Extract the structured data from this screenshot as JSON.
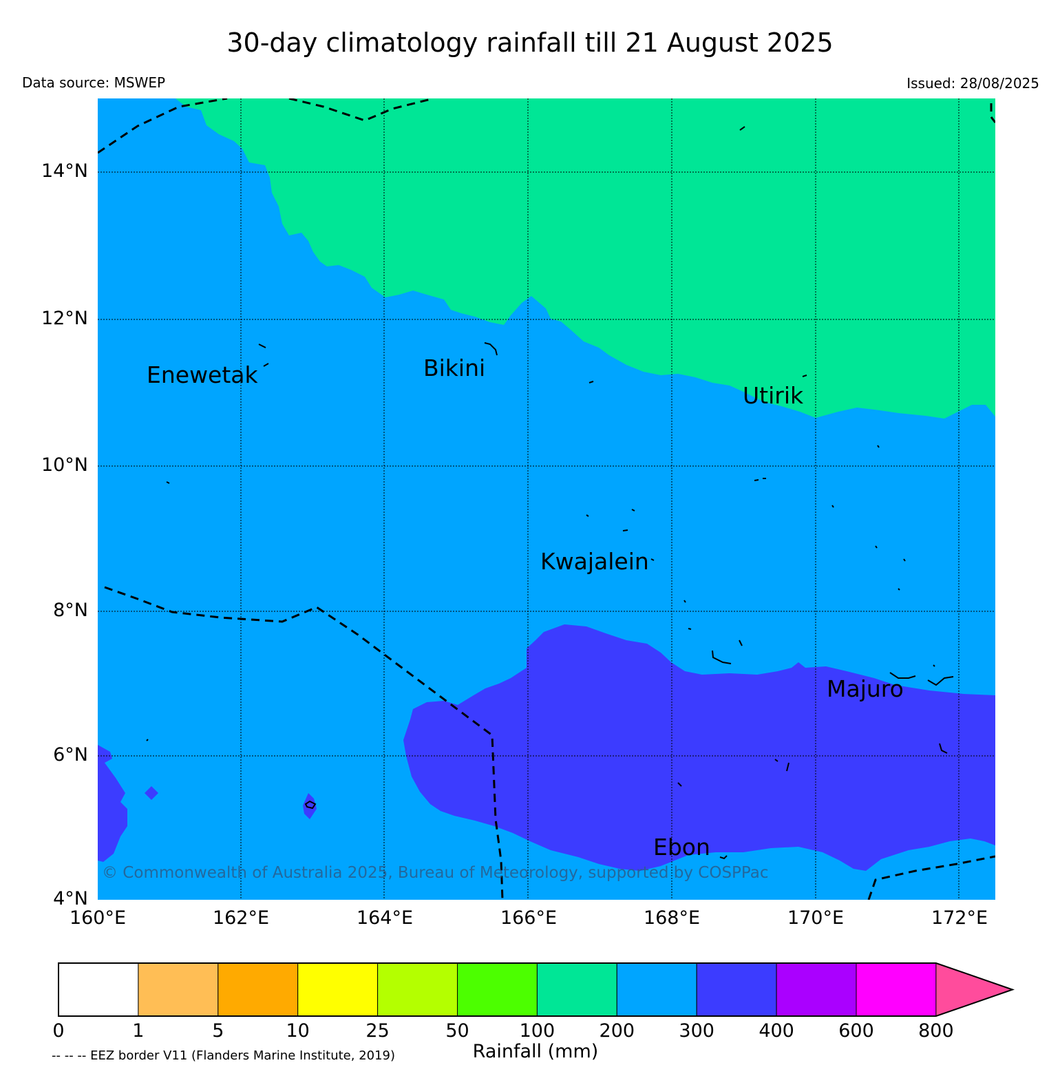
{
  "title": "30-day climatology rainfall till 21 August 2025",
  "data_source": "Data source: MSWEP",
  "issued": "Issued: 28/08/2025",
  "lat_labels": [
    "14°N",
    "12°N",
    "10°N",
    "8°N",
    "6°N",
    "4°N"
  ],
  "lon_labels": [
    "160°E",
    "162°E",
    "164°E",
    "166°E",
    "168°E",
    "170°E",
    "172°E"
  ],
  "places": {
    "enewetak": "Enewetak",
    "bikini": "Bikini",
    "utirik": "Utirik",
    "kwajalein": "Kwajalein",
    "majuro": "Majuro",
    "ebon": "Ebon"
  },
  "copyright": "© Commonwealth of Australia 2025, Bureau of Meteorology, supported by COSPPac",
  "colorbar": {
    "title": "Rainfall (mm)",
    "ticks": [
      "0",
      "1",
      "5",
      "10",
      "25",
      "50",
      "100",
      "200",
      "300",
      "400",
      "600",
      "800"
    ],
    "colors": [
      "#ffffff",
      "#ffbe55",
      "#ffaa00",
      "#ffff00",
      "#b4ff00",
      "#4cff00",
      "#00e696",
      "#00a5ff",
      "#3c3cff",
      "#aa00ff",
      "#ff00ff"
    ],
    "extend_color": "#ff4c9c"
  },
  "eez_note": "-- -- -- EEZ border V11 (Flanders Marine Institute, 2019)"
}
